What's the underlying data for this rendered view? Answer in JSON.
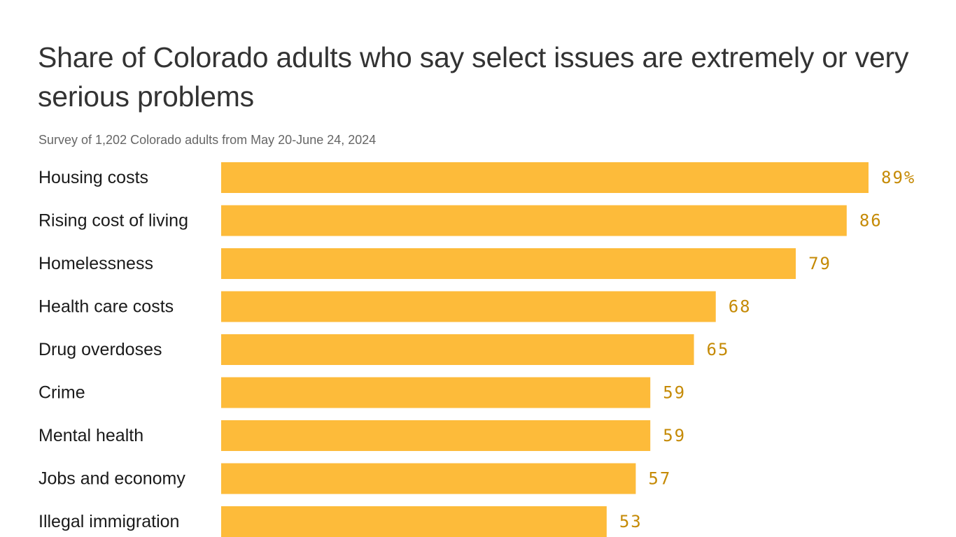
{
  "chart_data": {
    "type": "bar",
    "orientation": "horizontal",
    "title": "Share of Colorado adults who say select issues are extremely or very serious problems",
    "subtitle": "Survey of 1,202 Colorado adults from May 20-June 24, 2024",
    "categories": [
      "Housing costs",
      "Rising cost of living",
      "Homelessness",
      "Health care costs",
      "Drug overdoses",
      "Crime",
      "Mental health",
      "Jobs and economy",
      "Illegal immigration"
    ],
    "values": [
      89,
      86,
      79,
      68,
      65,
      59,
      59,
      57,
      53
    ],
    "value_labels": [
      "89%",
      "86",
      "79",
      "68",
      "65",
      "59",
      "59",
      "57",
      "53"
    ],
    "units": "%",
    "xlim": [
      0,
      89
    ],
    "grid": false,
    "bar_color": "#fdbb3a",
    "value_label_color": "#c58a05"
  }
}
